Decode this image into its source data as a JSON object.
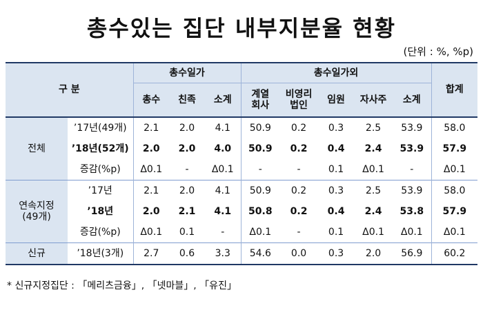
{
  "title": "총수있는 집단 내부지분율 현황",
  "unit": "(단위 : %, %p)",
  "header": {
    "gubun": "구 분",
    "group_owner": "총수일가",
    "group_other": "총수일가외",
    "total": "합계",
    "cols": [
      "총수",
      "친족",
      "소계",
      "계열\n회사",
      "비영리\n법인",
      "임원",
      "자사주",
      "소계"
    ]
  },
  "sections": [
    {
      "label": "전체",
      "rows": [
        {
          "label": "’17년(49개)",
          "bold": false,
          "values": [
            "2.1",
            "2.0",
            "4.1",
            "50.9",
            "0.2",
            "0.3",
            "2.5",
            "53.9",
            "58.0"
          ]
        },
        {
          "label": "’18년(52개)",
          "bold": true,
          "values": [
            "2.0",
            "2.0",
            "4.0",
            "50.9",
            "0.2",
            "0.4",
            "2.4",
            "53.9",
            "57.9"
          ]
        },
        {
          "label": "증감(%p)",
          "bold": false,
          "values": [
            "Δ0.1",
            "-",
            "Δ0.1",
            "-",
            "-",
            "0.1",
            "Δ0.1",
            "-",
            "Δ0.1"
          ]
        }
      ]
    },
    {
      "label": "연속지정\n(49개)",
      "rows": [
        {
          "label": "’17년",
          "bold": false,
          "values": [
            "2.1",
            "2.0",
            "4.1",
            "50.9",
            "0.2",
            "0.3",
            "2.5",
            "53.9",
            "58.0"
          ]
        },
        {
          "label": "’18년",
          "bold": true,
          "values": [
            "2.0",
            "2.1",
            "4.1",
            "50.8",
            "0.2",
            "0.4",
            "2.4",
            "53.8",
            "57.9"
          ]
        },
        {
          "label": "증감(%p)",
          "bold": false,
          "values": [
            "Δ0.1",
            "0.1",
            "-",
            "Δ0.1",
            "-",
            "0.1",
            "Δ0.1",
            "Δ0.1",
            "Δ0.1"
          ]
        }
      ]
    },
    {
      "label": "신규",
      "rows": [
        {
          "label": "’18년(3개)",
          "bold": false,
          "values": [
            "2.7",
            "0.6",
            "3.3",
            "54.6",
            "0.0",
            "0.3",
            "2.0",
            "56.9",
            "60.2"
          ]
        }
      ]
    }
  ],
  "footnote": "* 신규지정집단 : 「메리츠금융」, 「넷마블」, 「유진」"
}
